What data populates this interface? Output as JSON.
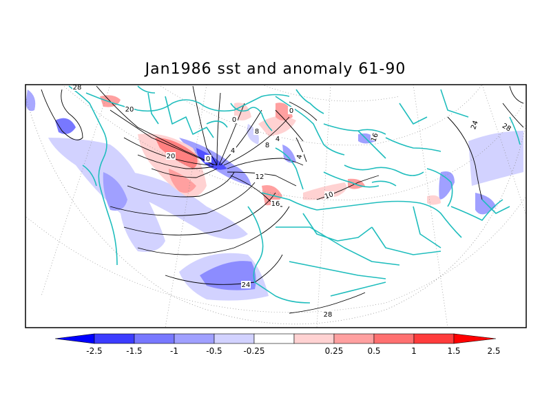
{
  "title": "Jan1986 sst and anomaly 61-90",
  "colors": {
    "coast": "#1fbdbd",
    "contour": "#000000",
    "grid": "#8c8c8c"
  },
  "contour_labels": [
    "28",
    "20",
    "20",
    "0",
    "0",
    "0",
    "4",
    "4",
    "8",
    "12",
    "16",
    "24",
    "28",
    "24",
    "28",
    "16",
    "4",
    "8",
    "10"
  ],
  "colorbar": {
    "ticks": [
      "-2.5",
      "-1.5",
      "-1",
      "-0.5",
      "-0.25",
      "0.25",
      "0.5",
      "1",
      "1.5",
      "2.5"
    ],
    "bins": [
      {
        "color": "#0000ff"
      },
      {
        "color": "#3c3cff"
      },
      {
        "color": "#7878ff"
      },
      {
        "color": "#a0a0ff"
      },
      {
        "color": "#d2d2ff"
      },
      {
        "color": "#ffffff"
      },
      {
        "color": "#ffd2d2"
      },
      {
        "color": "#ffa0a0"
      },
      {
        "color": "#ff7070"
      },
      {
        "color": "#ff3c3c"
      },
      {
        "color": "#ff0000"
      }
    ]
  }
}
